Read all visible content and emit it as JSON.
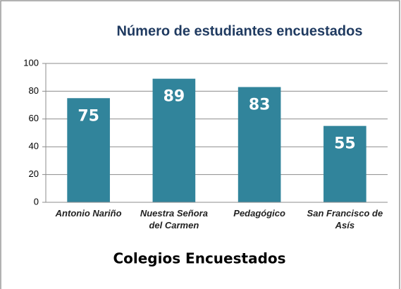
{
  "chart_data": {
    "type": "bar",
    "title": "Número de estudiantes encuestados",
    "categories": [
      "Antonio Nariño",
      "Nuestra Señora del Carmen",
      "Pedagógico",
      "San Francisco de Asís"
    ],
    "values": [
      75,
      89,
      83,
      55
    ],
    "color": "#31849b",
    "x_label": "Colegios Encuestados",
    "ylim": [
      0,
      100
    ],
    "yticks": [
      0,
      20,
      40,
      60,
      80,
      100
    ],
    "grid": true
  }
}
